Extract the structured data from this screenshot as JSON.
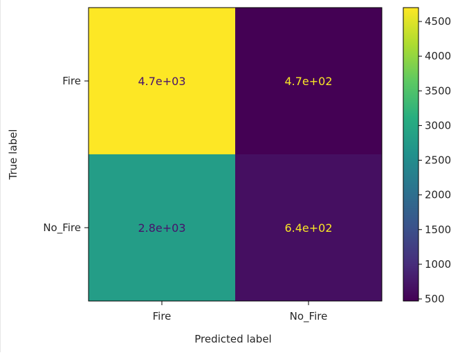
{
  "chart_data": {
    "type": "heatmap",
    "title": "",
    "xlabel": "Predicted label",
    "ylabel": "True label",
    "x_categories": [
      "Fire",
      "No_Fire"
    ],
    "y_categories": [
      "Fire",
      "No_Fire"
    ],
    "values": [
      [
        4700,
        470
      ],
      [
        2800,
        640
      ]
    ],
    "cell_labels": [
      [
        "4.7e+03",
        "4.7e+02"
      ],
      [
        "2.8e+03",
        "6.4e+02"
      ]
    ],
    "colormap": "viridis",
    "colorbar": {
      "range": [
        470,
        4700
      ],
      "ticks": [
        500,
        1000,
        1500,
        2000,
        2500,
        3000,
        3500,
        4000,
        4500
      ],
      "tick_labels": [
        "500",
        "1000",
        "1500",
        "2000",
        "2500",
        "3000",
        "3500",
        "4000",
        "4500"
      ]
    },
    "cell_text_colors": {
      "light": "#f9e626",
      "dark": "#47116b"
    }
  }
}
